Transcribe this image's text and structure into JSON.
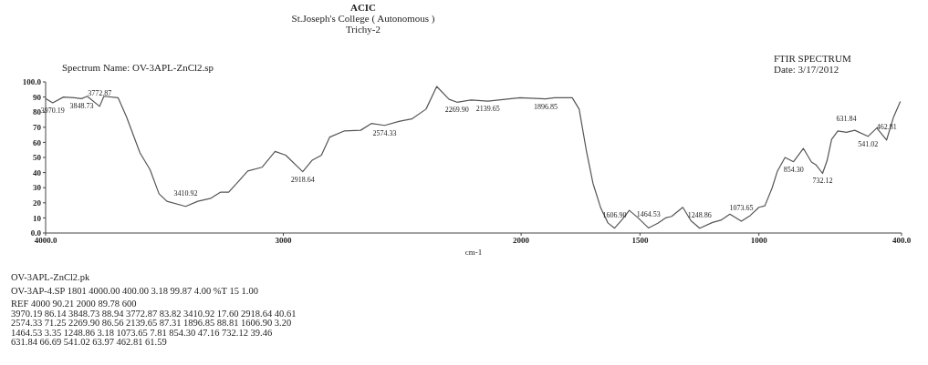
{
  "chart_data": {
    "type": "line",
    "title": "ACIC",
    "subtitle": "St.Joseph's College ( Autonomous )\nTrichy-2",
    "xlabel": "cm-1",
    "x": [
      4000,
      3970.19,
      3925,
      3880,
      3848.73,
      3825,
      3772.87,
      3755,
      3695,
      3660,
      3603,
      3561,
      3523,
      3490,
      3410.92,
      3360,
      3305,
      3265,
      3230,
      3190,
      3150,
      3090,
      3035,
      2990,
      2918.64,
      2880,
      2840,
      2805,
      2745,
      2675,
      2630,
      2574.33,
      2510,
      2460,
      2400,
      2355,
      2303,
      2269.9,
      2210,
      2139.65,
      2005,
      1896.85,
      1860,
      1785,
      1756,
      1725,
      1698,
      1665,
      1635,
      1606.9,
      1575,
      1545,
      1508,
      1464.53,
      1425,
      1393,
      1367,
      1320,
      1285,
      1248.86,
      1195,
      1160,
      1122,
      1073.65,
      1037,
      1000,
      975,
      944,
      922,
      890,
      854.3,
      813,
      779,
      759,
      732.12,
      713,
      694,
      668,
      631.84,
      597,
      541.02,
      504,
      462.81,
      433,
      405
    ],
    "series": [
      {
        "color": "#555555",
        "values": [
          89,
          86.14,
          90,
          89.5,
          88.94,
          90.5,
          83.82,
          90.5,
          89.5,
          77,
          53,
          42,
          26,
          21,
          17.6,
          21,
          23,
          27,
          27,
          34,
          41,
          43.5,
          54,
          51.5,
          40.61,
          48,
          51.5,
          63.5,
          67.5,
          68,
          72.5,
          71.25,
          74,
          75.5,
          82,
          97,
          88.5,
          86.56,
          88,
          87.31,
          89.5,
          88.81,
          89.5,
          89.5,
          82,
          54,
          33,
          16.5,
          6.7,
          3.2,
          9,
          15,
          10,
          3.35,
          6.5,
          10,
          11,
          17,
          8,
          3.18,
          7,
          8.5,
          12.5,
          7.81,
          11.5,
          17,
          18,
          30,
          41,
          50,
          47.16,
          56,
          47,
          45,
          39.46,
          48,
          62,
          67.5,
          66.69,
          68,
          63.97,
          69.5,
          61.59,
          77,
          87
        ]
      }
    ],
    "xlim": [
      4000,
      400
    ],
    "xticks": [
      {
        "value": 4000,
        "label": "4000.0"
      },
      3000,
      2000,
      1500,
      1000,
      {
        "value": 400,
        "label": "400.0"
      }
    ],
    "ylim": [
      0,
      100
    ],
    "yticks": [
      {
        "value": 0,
        "label": "0.0"
      },
      10,
      20,
      30,
      40,
      50,
      60,
      70,
      80,
      90,
      {
        "value": 100,
        "label": "100.0"
      }
    ],
    "marker": "none",
    "line_style": "solid",
    "annotations": [
      "Spectrum Name: OV-3APL-ZnCl2.sp",
      "FTIR SPECTRUM",
      "Date: 3/17/2012",
      "OV-3APL-ZnCl2.pk",
      "OV-3AP-4.SP 1801 4000.00 400.00 3.18 99.87 4.00 %T 15 1.00",
      "REF 4000 90.21 2000 89.78 600",
      "3970.19 86.14 3848.73 88.94 3772.87 83.82 3410.92 17.60 2918.64 40.61",
      "2574.33 71.25 2269.90 86.56 2139.65 87.31 1896.85 88.81 1606.90 3.20",
      "1464.53 3.35 1248.86 3.18 1073.65 7.81 854.30 47.16 732.12 39.46",
      "631.84 66.69 541.02 63.97 462.81 61.59",
      {
        "text": "3970.19",
        "x": 3970.19,
        "y": 86.14
      },
      {
        "text": "3848.73",
        "x": 3848.73,
        "y": 88.94
      },
      {
        "text": "3772.87",
        "x": 3772.87,
        "y": 83.82
      },
      {
        "text": "3410.92",
        "x": 3410.92,
        "y": 17.6
      },
      {
        "text": "2918.64",
        "x": 2918.64,
        "y": 40.61
      },
      {
        "text": "2574.33",
        "x": 2574.33,
        "y": 71.25
      },
      {
        "text": "2269.90",
        "x": 2269.9,
        "y": 86.56
      },
      {
        "text": "2139.65",
        "x": 2139.65,
        "y": 87.31
      },
      {
        "text": "1896.85",
        "x": 1896.85,
        "y": 88.81
      },
      {
        "text": "1606.90",
        "x": 1606.9,
        "y": 3.2
      },
      {
        "text": "1464.53",
        "x": 1464.53,
        "y": 3.35
      },
      {
        "text": "1248.86",
        "x": 1248.86,
        "y": 3.18
      },
      {
        "text": "1073.65",
        "x": 1073.65,
        "y": 7.81
      },
      {
        "text": "854.30",
        "x": 854.3,
        "y": 47.16
      },
      {
        "text": "732.12",
        "x": 732.12,
        "y": 39.46
      },
      {
        "text": "631.84",
        "x": 631.84,
        "y": 66.69
      },
      {
        "text": "541.02",
        "x": 541.02,
        "y": 63.97
      },
      {
        "text": "462.81",
        "x": 462.81,
        "y": 61.59
      }
    ]
  }
}
